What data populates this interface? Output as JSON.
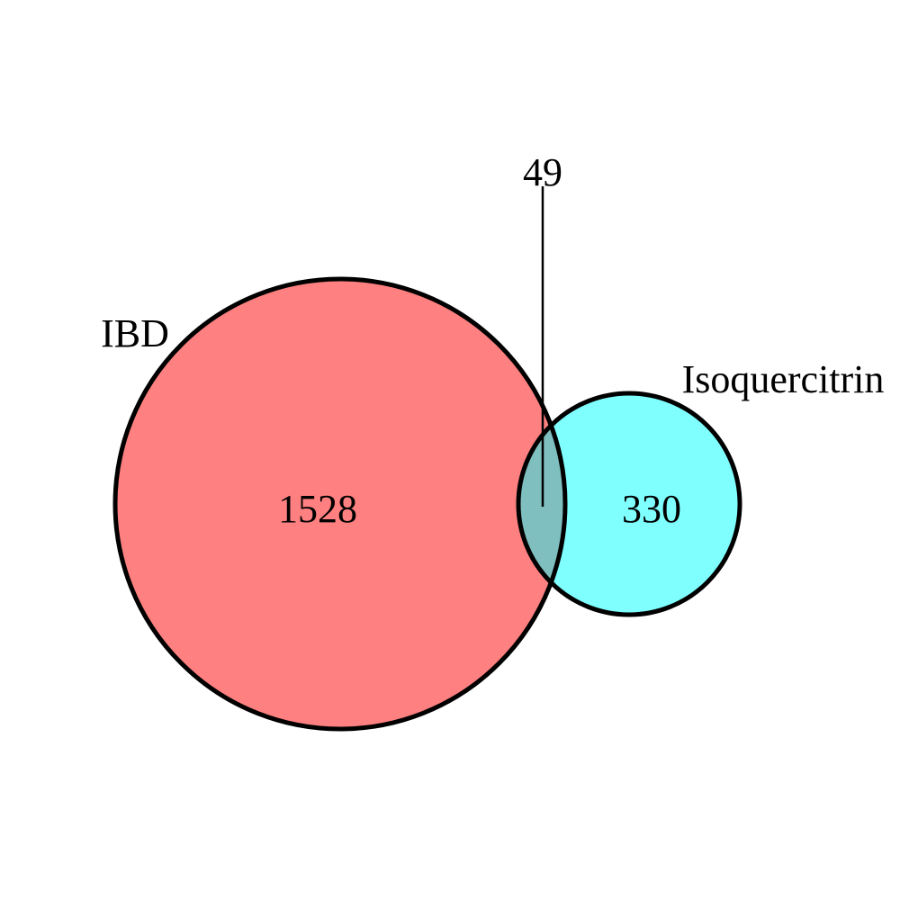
{
  "venn": {
    "sets": [
      {
        "id": "ibd",
        "label": "IBD",
        "only_count": "1528",
        "fill_color": "#ff8080"
      },
      {
        "id": "isoquercitrin",
        "label": "Isoquercitrin",
        "only_count": "330",
        "fill_color": "#80ffff"
      }
    ],
    "intersection": {
      "count": "49",
      "fill_color": "#80bfbf"
    },
    "outline_color": "#000000"
  }
}
